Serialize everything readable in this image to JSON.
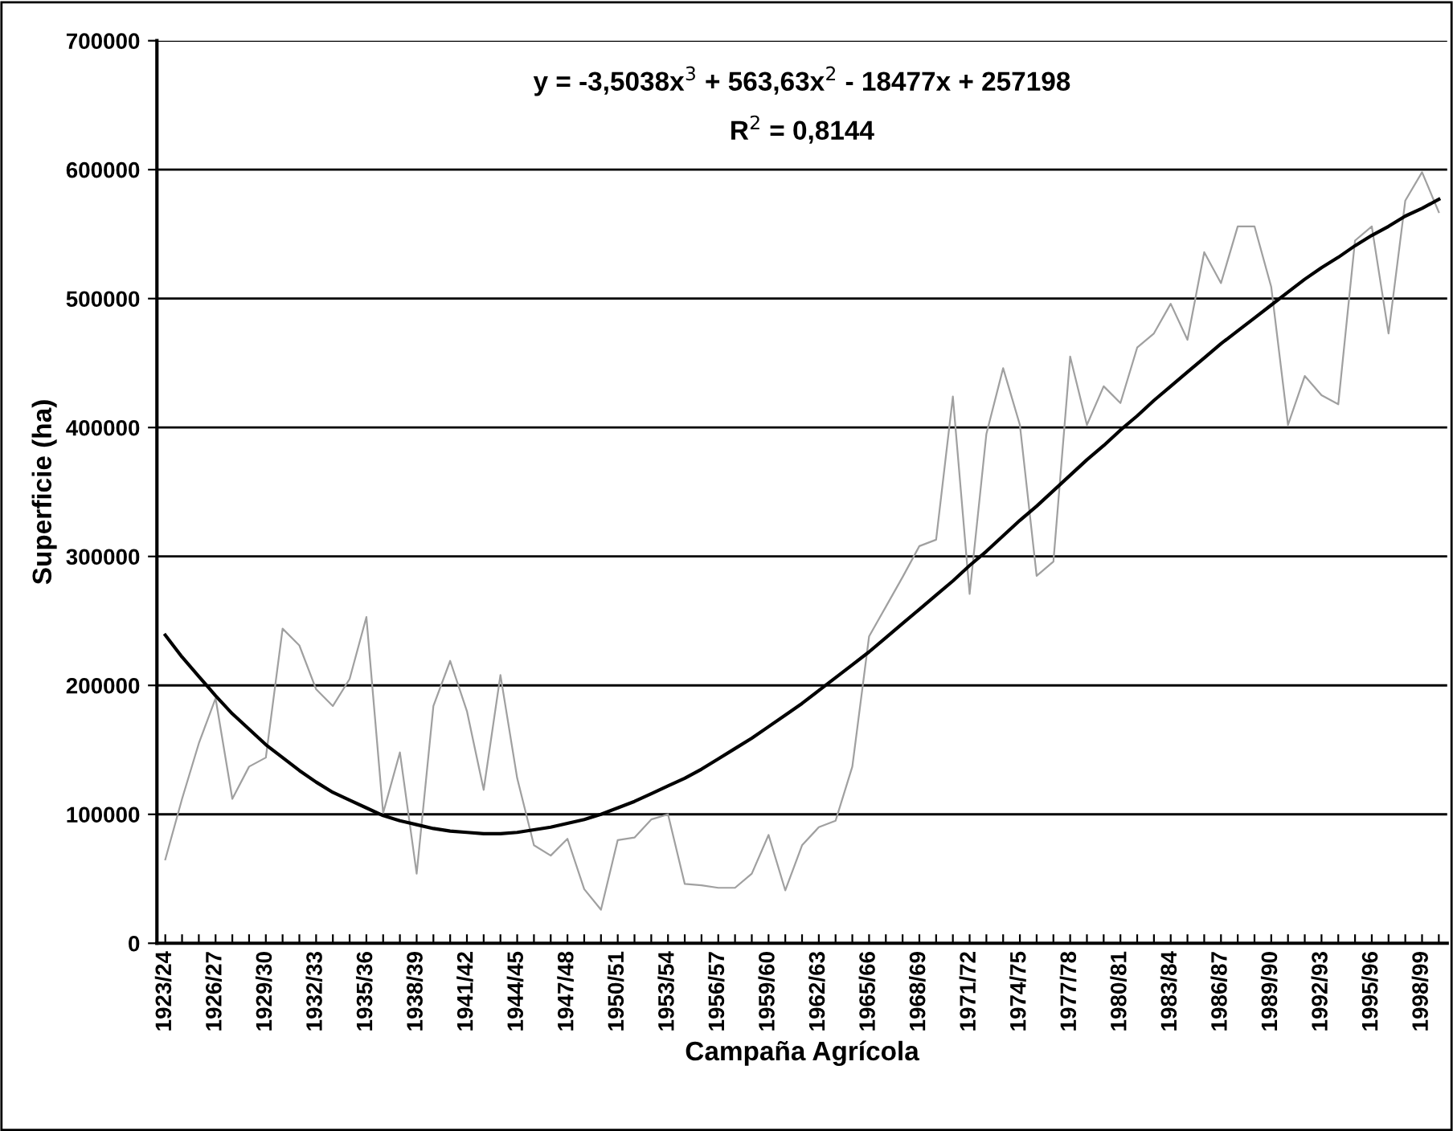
{
  "chart_data": {
    "type": "line",
    "xlabel": "Campaña Agrícola",
    "ylabel": "Superficie (ha)",
    "categories": [
      "1923/24",
      null,
      null,
      "1926/27",
      null,
      null,
      "1929/30",
      null,
      null,
      "1932/33",
      null,
      null,
      "1935/36",
      null,
      null,
      "1938/39",
      null,
      null,
      "1941/42",
      null,
      null,
      "1944/45",
      null,
      null,
      "1947/48",
      null,
      null,
      "1950/51",
      null,
      null,
      "1953/54",
      null,
      null,
      "1956/57",
      null,
      null,
      "1959/60",
      null,
      null,
      "1962/63",
      null,
      null,
      "1965/66",
      null,
      null,
      "1968/69",
      null,
      null,
      "1971/72",
      null,
      null,
      "1974/75",
      null,
      null,
      "1977/78",
      null,
      null,
      "1980/81",
      null,
      null,
      "1983/84",
      null,
      null,
      "1986/87",
      null,
      null,
      "1989/90",
      null,
      null,
      "1992/93",
      null,
      null,
      "1995/96",
      null,
      null,
      "1998/99",
      null
    ],
    "series": [
      {
        "color": "#a0a0a0",
        "values": [
          65000,
          112000,
          155000,
          190000,
          112000,
          137000,
          144000,
          244000,
          231000,
          197000,
          184000,
          205000,
          253000,
          101000,
          148000,
          54000,
          184000,
          219000,
          180000,
          119000,
          208000,
          128000,
          76000,
          68000,
          81000,
          42000,
          26000,
          80000,
          82000,
          96000,
          100000,
          46000,
          45000,
          43000,
          43000,
          54000,
          84000,
          41000,
          76000,
          90000,
          95000,
          137000,
          238000,
          261000,
          284000,
          308000,
          313000,
          424000,
          271000,
          395000,
          446000,
          402000,
          285000,
          296000,
          455000,
          402000,
          432000,
          419000,
          462000,
          473000,
          496000,
          468000,
          536000,
          512000,
          556000,
          556000,
          509000,
          402000,
          440000,
          425000,
          418000,
          545000,
          556000,
          473000,
          576000,
          598000,
          567000
        ]
      },
      {
        "color": "#000000",
        "values": [
          239000,
          222000,
          207000,
          192000,
          178000,
          166000,
          154000,
          144000,
          134000,
          125000,
          117000,
          111000,
          105000,
          99000,
          95000,
          92000,
          89000,
          87000,
          86000,
          85000,
          85000,
          86000,
          88000,
          90000,
          93000,
          96000,
          100000,
          105000,
          110000,
          116000,
          122000,
          128000,
          135000,
          143000,
          151000,
          159000,
          168000,
          177000,
          186000,
          196000,
          206000,
          216000,
          226000,
          237000,
          248000,
          259000,
          270000,
          281000,
          293000,
          304000,
          316000,
          328000,
          339000,
          351000,
          363000,
          375000,
          386000,
          398000,
          409000,
          421000,
          432000,
          443000,
          454000,
          465000,
          475000,
          485000,
          495000,
          505000,
          515000,
          524000,
          532000,
          541000,
          549000,
          556000,
          564000,
          570000,
          577000
        ]
      }
    ],
    "ylim": [
      0,
      700000
    ],
    "yticks": [
      0,
      100000,
      200000,
      300000,
      400000,
      500000,
      600000,
      700000
    ],
    "grid": "y",
    "legend": false,
    "marker": "none",
    "line_style": "solid",
    "annotations": [
      "y = -3,5038x$^{3}$ + 563,63x$^{2}$ - 18477x + 257198",
      "R$^{2}$ = 0,8144"
    ]
  }
}
